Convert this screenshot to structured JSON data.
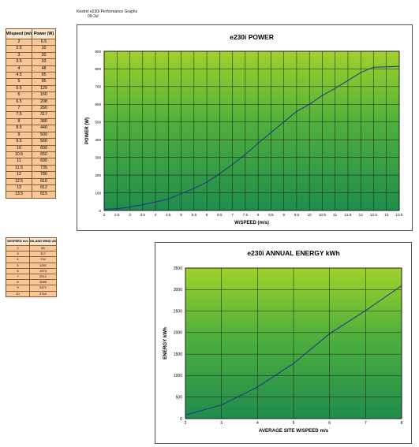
{
  "header": {
    "line1": "Kestrel e230i Performance Graphs",
    "line2": "09-Jul"
  },
  "power_table": {
    "headers": [
      "W/speed (m/s)",
      "Power (W)"
    ],
    "rows": [
      [
        "2",
        "6.5"
      ],
      [
        "2.5",
        "10"
      ],
      [
        "3",
        "20"
      ],
      [
        "3.5",
        "33"
      ],
      [
        "4",
        "48"
      ],
      [
        "4.5",
        "65"
      ],
      [
        "5",
        "95"
      ],
      [
        "5.5",
        "125"
      ],
      [
        "6",
        "160"
      ],
      [
        "6.5",
        "208"
      ],
      [
        "7",
        "260"
      ],
      [
        "7.5",
        "317"
      ],
      [
        "8",
        "380"
      ],
      [
        "8.5",
        "440"
      ],
      [
        "9",
        "500"
      ],
      [
        "9.5",
        "560"
      ],
      [
        "10",
        "600"
      ],
      [
        "10.5",
        "650"
      ],
      [
        "11",
        "690"
      ],
      [
        "11.5",
        "735"
      ],
      [
        "12",
        "780"
      ],
      [
        "12.5",
        "810"
      ],
      [
        "13",
        "812"
      ],
      [
        "13.5",
        "815"
      ]
    ]
  },
  "energy_table": {
    "headers": [
      "W/SPEED m/s",
      "INLAND WIND ANNUAL"
    ],
    "rows": [
      [
        "2",
        "85"
      ],
      [
        "3",
        "317"
      ],
      [
        "4",
        "734"
      ],
      [
        "5",
        "1281"
      ],
      [
        "6",
        "1973"
      ],
      [
        "7",
        "2512"
      ],
      [
        "8",
        "3089"
      ],
      [
        "9",
        "3471"
      ],
      [
        "10",
        "3764"
      ]
    ]
  },
  "chart_data": [
    {
      "type": "line",
      "title": "e230i POWER",
      "xlabel": "W/SPEED (m/s)",
      "ylabel": "POWER (W)",
      "xlim": [
        2,
        13.5
      ],
      "ylim": [
        0,
        900
      ],
      "x_ticks": [
        "2",
        "2.5",
        "3",
        "3.5",
        "4",
        "4.5",
        "5",
        "5.5",
        "6",
        "6.5",
        "7",
        "7.5",
        "8",
        "8.5",
        "9",
        "9.5",
        "10",
        "10.5",
        "11",
        "11.5",
        "12",
        "12.5",
        "13",
        "13.5"
      ],
      "y_ticks": [
        "0",
        "100",
        "200",
        "300",
        "400",
        "500",
        "600",
        "700",
        "800",
        "900"
      ],
      "grid": true,
      "series": [
        {
          "x": [
            2,
            2.5,
            3,
            3.5,
            4,
            4.5,
            5,
            5.5,
            6,
            6.5,
            7,
            7.5,
            8,
            8.5,
            9,
            9.5,
            10,
            10.5,
            11,
            11.5,
            12,
            12.5,
            13,
            13.5
          ],
          "values": [
            6.5,
            10,
            20,
            33,
            48,
            65,
            95,
            125,
            160,
            208,
            260,
            317,
            380,
            440,
            500,
            560,
            600,
            650,
            690,
            735,
            780,
            810,
            812,
            815
          ],
          "color": "#1f2f8f"
        }
      ]
    },
    {
      "type": "line",
      "title": "e230i ANNUAL ENERGY kWh",
      "xlabel": "AVERAGE SITE W/SPEED m/s",
      "ylabel": "ENERGY kWh",
      "xlim": [
        2,
        8
      ],
      "ylim": [
        0,
        3500
      ],
      "x_ticks": [
        "2",
        "3",
        "4",
        "5",
        "6",
        "7",
        "8"
      ],
      "y_ticks": [
        "0",
        "500",
        "1000",
        "1500",
        "2000",
        "2500",
        "3000",
        "3500"
      ],
      "grid": true,
      "series": [
        {
          "x": [
            2,
            3,
            4,
            5,
            6,
            7,
            8
          ],
          "values": [
            85,
            317,
            734,
            1281,
            1973,
            2512,
            3089
          ],
          "color": "#1f2f8f"
        }
      ]
    }
  ]
}
